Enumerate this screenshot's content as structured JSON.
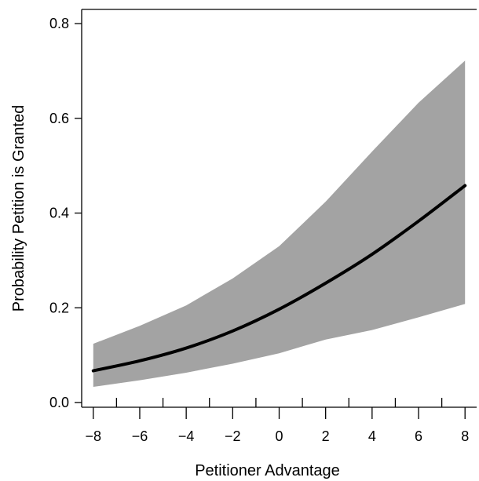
{
  "chart_data": {
    "type": "line",
    "title": "",
    "xlabel": "Petitioner Advantage",
    "ylabel": "Probability Petition is Granted",
    "xlim": [
      -8.5,
      8.5
    ],
    "ylim": [
      -0.01,
      0.83
    ],
    "x_major_ticks": [
      -8,
      -6,
      -4,
      -2,
      0,
      2,
      4,
      6,
      8
    ],
    "x_major_tick_labels": [
      "−8",
      "−6",
      "−4",
      "−2",
      "0",
      "2",
      "4",
      "6",
      "8"
    ],
    "x_minor_ticks": [
      -7,
      -5,
      -3,
      -1,
      1,
      3,
      5,
      7
    ],
    "y_ticks": [
      0.0,
      0.2,
      0.4,
      0.6,
      0.8
    ],
    "y_tick_labels": [
      "0.0",
      "0.2",
      "0.4",
      "0.6",
      "0.8"
    ],
    "grid": false,
    "legend": "none",
    "series": [
      {
        "x": [
          -8,
          -6,
          -4,
          -2,
          0,
          2,
          4,
          6,
          8
        ],
        "y": [
          0.067,
          0.088,
          0.115,
          0.151,
          0.197,
          0.252,
          0.313,
          0.383,
          0.458
        ],
        "color": "#000000"
      }
    ],
    "band": {
      "x": [
        -8,
        -6,
        -4,
        -2,
        0,
        2,
        4,
        6,
        8
      ],
      "lower": [
        0.033,
        0.047,
        0.063,
        0.082,
        0.104,
        0.133,
        0.153,
        0.18,
        0.208
      ],
      "upper": [
        0.124,
        0.162,
        0.205,
        0.262,
        0.33,
        0.424,
        0.53,
        0.633,
        0.722
      ],
      "color": "#a3a3a3"
    }
  }
}
